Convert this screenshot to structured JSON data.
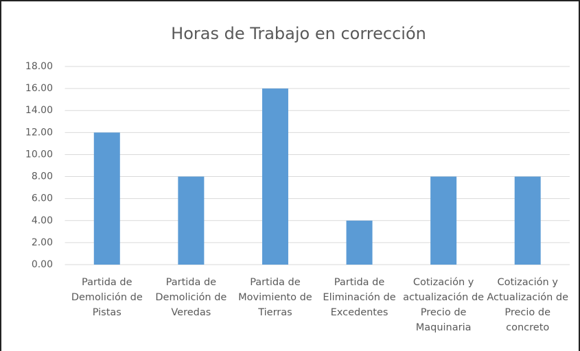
{
  "chart_data": {
    "type": "bar",
    "title": "Horas de Trabajo en corrección",
    "categories": [
      "Partida de Demolición de Pistas",
      "Partida de Demolición de Veredas",
      "Partida de Movimiento de Tierras",
      "Partida de Eliminación de Excedentes",
      "Cotización y actualización de Precio de Maquinaria",
      "Cotización y Actualización de Precio de concreto"
    ],
    "values": [
      12,
      8,
      16,
      4,
      8,
      8
    ],
    "color": "#5b9bd5",
    "ylim": [
      0,
      18
    ],
    "yticks": [
      {
        "value": 0,
        "label": "0.00"
      },
      {
        "value": 2,
        "label": "2.00"
      },
      {
        "value": 4,
        "label": "4.00"
      },
      {
        "value": 6,
        "label": "6.00"
      },
      {
        "value": 8,
        "label": "8.00"
      },
      {
        "value": 10,
        "label": "10.00"
      },
      {
        "value": 12,
        "label": "12.00"
      },
      {
        "value": 14,
        "label": "14.00"
      },
      {
        "value": 16,
        "label": "16.00"
      },
      {
        "value": 18,
        "label": "18.00"
      }
    ],
    "grid": true
  }
}
